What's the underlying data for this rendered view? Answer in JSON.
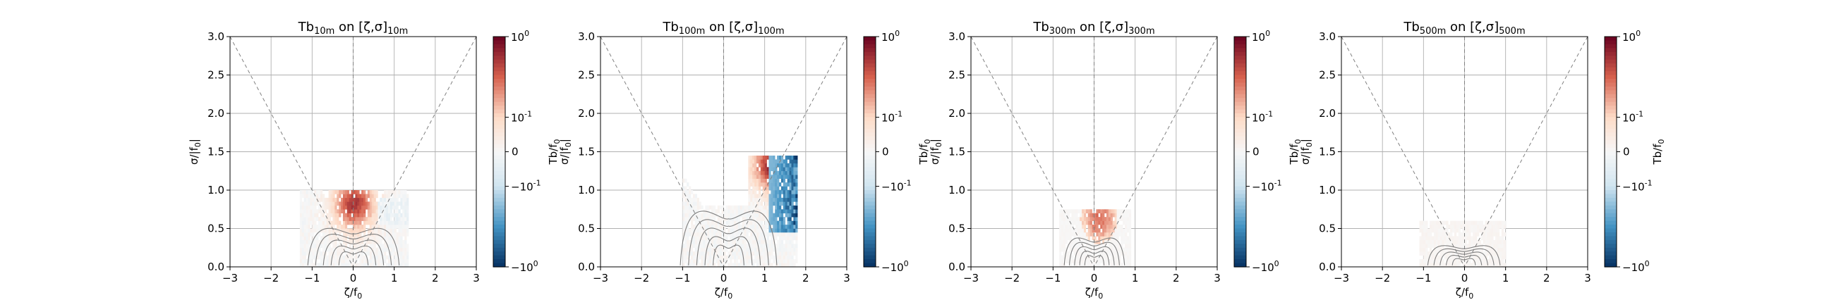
{
  "chart_data": [
    {
      "type": "heatmap",
      "title": {
        "base": "Tb",
        "sub1": "10m",
        "mid": " on [ζ,σ]",
        "sub2": "10m"
      },
      "xlabel": {
        "main": "ζ/f",
        "sub": "0"
      },
      "ylabel": {
        "main": "σ/|f",
        "sub": "0",
        "tail": "|"
      },
      "cbar_label": "",
      "xlim": [
        -3,
        3
      ],
      "ylim": [
        0,
        3
      ],
      "xticks": [
        "−3",
        "−2",
        "−1",
        "0",
        "1",
        "2",
        "3"
      ],
      "yticks": [
        "0.0",
        "0.5",
        "1.0",
        "1.5",
        "2.0",
        "2.5",
        "3.0"
      ],
      "cbar_ticks": [
        "10^0",
        "10^-1",
        "0",
        "−10^-1",
        "−10^0"
      ],
      "grid": true,
      "guide_lines": "dashed |ζ| = σ and ζ = 0",
      "data_region": {
        "x_range": [
          -1.3,
          1.35
        ],
        "y_range": [
          0,
          1.0
        ]
      },
      "hotspot": {
        "x": 0.0,
        "y": 0.8,
        "value": 0.8
      }
    },
    {
      "type": "heatmap",
      "title": {
        "base": "Tb",
        "sub1": "100m",
        "mid": " on [ζ,σ]",
        "sub2": "100m"
      },
      "xlabel": {
        "main": "ζ/f",
        "sub": "0"
      },
      "ylabel": {
        "main": "σ/|f",
        "sub": "0",
        "tail": "|"
      },
      "ylabel2": {
        "main": "Tb/f",
        "sub": "0"
      },
      "cbar_label": "",
      "xlim": [
        -3,
        3
      ],
      "ylim": [
        0,
        3
      ],
      "xticks": [
        "−3",
        "−2",
        "−1",
        "0",
        "1",
        "2",
        "3"
      ],
      "yticks": [
        "0.0",
        "0.5",
        "1.0",
        "1.5",
        "2.0",
        "2.5",
        "3.0"
      ],
      "cbar_ticks": [
        "10^0",
        "10^-1",
        "0",
        "−10^-1",
        "−10^0"
      ],
      "grid": true,
      "guide_lines": "dashed |ζ| = σ and ζ = 0",
      "data_region": {
        "x_range": [
          -1.0,
          1.8
        ],
        "y_range": [
          0,
          1.45
        ]
      },
      "hotspot": {
        "x": 1.2,
        "y": 1.3,
        "value": 0.9
      }
    },
    {
      "type": "heatmap",
      "title": {
        "base": "Tb",
        "sub1": "300m",
        "mid": " on [ζ,σ]",
        "sub2": "300m"
      },
      "xlabel": {
        "main": "ζ/f",
        "sub": "0"
      },
      "ylabel": {
        "main": "σ/|f",
        "sub": "0",
        "tail": "|"
      },
      "ylabel2": {
        "main": "Tb/f",
        "sub": "0"
      },
      "cbar_label": "",
      "xlim": [
        -3,
        3
      ],
      "ylim": [
        0,
        3
      ],
      "xticks": [
        "−3",
        "−2",
        "−1",
        "0",
        "1",
        "2",
        "3"
      ],
      "yticks": [
        "0.0",
        "0.5",
        "1.0",
        "1.5",
        "2.0",
        "2.5",
        "3.0"
      ],
      "cbar_ticks": [
        "10^0",
        "10^-1",
        "0",
        "−10^-1",
        "−10^0"
      ],
      "grid": true,
      "guide_lines": "dashed |ζ| = σ and ζ = 0",
      "data_region": {
        "x_range": [
          -0.85,
          0.9
        ],
        "y_range": [
          0,
          0.75
        ]
      },
      "hotspot": {
        "x": 0.1,
        "y": 0.6,
        "value": 0.6
      }
    },
    {
      "type": "heatmap",
      "title": {
        "base": "Tb",
        "sub1": "500m",
        "mid": " on [ζ,σ]",
        "sub2": "500m"
      },
      "xlabel": {
        "main": "ζ/f",
        "sub": "0"
      },
      "ylabel": {
        "main": "σ/|f",
        "sub": "0",
        "tail": "|"
      },
      "ylabel2": {
        "main": "Tb/f",
        "sub": "0"
      },
      "cbar_label": {
        "main": "Tb/f",
        "sub": "0"
      },
      "xlim": [
        -3,
        3
      ],
      "ylim": [
        0,
        3
      ],
      "xticks": [
        "−3",
        "−2",
        "−1",
        "0",
        "1",
        "2",
        "3"
      ],
      "yticks": [
        "0.0",
        "0.5",
        "1.0",
        "1.5",
        "2.0",
        "2.5",
        "3.0"
      ],
      "cbar_ticks": [
        "10^0",
        "10^-1",
        "0",
        "−10^-1",
        "−10^0"
      ],
      "grid": true,
      "guide_lines": "dashed |ζ| = σ and ζ = 0",
      "data_region": {
        "x_range": [
          -1.1,
          1.0
        ],
        "y_range": [
          0,
          0.55
        ]
      },
      "hotspot": {
        "x": 0.0,
        "y": 0.3,
        "value": 0.05
      }
    }
  ],
  "colors": {
    "pos_max": "#67001f",
    "pos_mid": "#d6604d",
    "pos_light": "#fddbc7",
    "neutral": "#f7f7f7",
    "neg_light": "#d1e5f0",
    "neg_mid": "#4393c3",
    "neg_max": "#053061",
    "contour": "#7f7f7f",
    "grid": "#b0b0b0"
  }
}
